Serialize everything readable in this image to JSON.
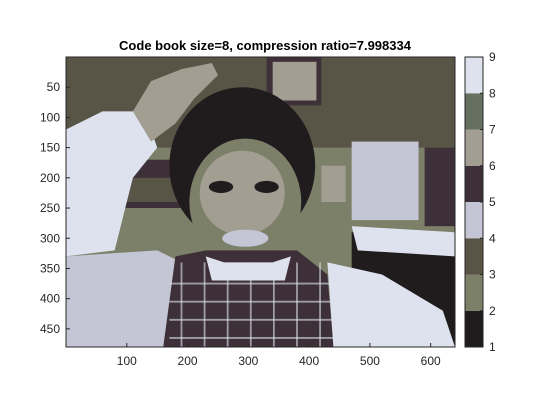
{
  "chart_data": {
    "type": "heatmap",
    "title": "Code book size=8, compression ratio=7.998334",
    "image_extent": {
      "x": [
        0,
        640
      ],
      "y": [
        0,
        480
      ]
    },
    "x_ticks": [
      100,
      200,
      300,
      400,
      500,
      600
    ],
    "y_ticks": [
      50,
      100,
      150,
      200,
      250,
      300,
      350,
      400,
      450
    ],
    "y_direction": "reversed",
    "colorbar": {
      "range": [
        1,
        9
      ],
      "ticks": [
        1,
        2,
        3,
        4,
        5,
        6,
        7,
        8,
        9
      ],
      "colors": [
        "#201c1e",
        "#7c8068",
        "#585446",
        "#c4c6d6",
        "#3e3038",
        "#a29e92",
        "#667060",
        "#dde2ee"
      ]
    },
    "palette": {
      "dark": "#201c1e",
      "darkPurple": "#3e3038",
      "olive": "#7c8068",
      "oliveDark": "#585446",
      "green": "#667060",
      "tan": "#a29e92",
      "light": "#c4c6d6",
      "lightest": "#dde2ee"
    }
  }
}
